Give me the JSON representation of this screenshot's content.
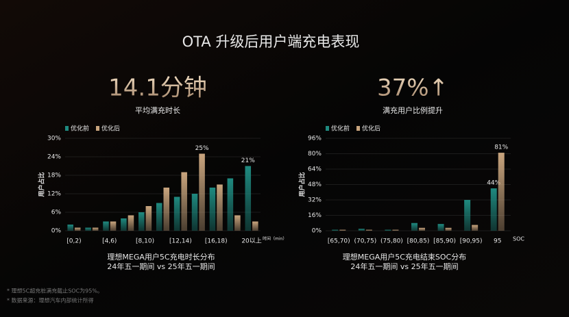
{
  "title": "OTA 升级后用户端充电表现",
  "stats": [
    {
      "value": "14.1分钟",
      "label": "平均满充时长"
    },
    {
      "value": "37%↑",
      "label": "满充用户比例提升"
    }
  ],
  "footnotes": [
    "* 理想5C超充桩满充截止SOC为95%。",
    "* 数据来源：理想汽车内部统计所得"
  ],
  "chart_data": [
    {
      "type": "bar",
      "title": "理想MEGA用户5C充电时长分布",
      "subtitle": "24年五一期间 vs 25年五一期间",
      "y_label": "用户占比",
      "x_label": "时间（min）",
      "categories": [
        "[0,2)",
        null,
        "[4,6)",
        null,
        "[8,10)",
        null,
        "[12,14)",
        null,
        "[16,18)",
        null,
        "20以上"
      ],
      "series": [
        {
          "name": "优化前",
          "color": "#1f8a80",
          "values": [
            2,
            1,
            3,
            4,
            6,
            9,
            11,
            12,
            14,
            17,
            21
          ],
          "value_labels": [
            null,
            null,
            null,
            null,
            null,
            null,
            null,
            null,
            null,
            null,
            "21%"
          ]
        },
        {
          "name": "优化后",
          "color": "#c9a57e",
          "values": [
            1,
            1,
            3,
            5,
            8,
            14,
            19,
            25,
            15,
            5,
            3
          ],
          "value_labels": [
            null,
            null,
            null,
            null,
            null,
            null,
            null,
            "25%",
            null,
            null,
            null
          ]
        }
      ],
      "ylim": [
        0,
        30
      ],
      "yticks": [
        {
          "value": 0,
          "label": "0%"
        },
        {
          "value": 6,
          "label": "6%"
        },
        {
          "value": 12,
          "label": "12%"
        },
        {
          "value": 18,
          "label": "18%"
        },
        {
          "value": 24,
          "label": "24%"
        },
        {
          "value": 30,
          "label": "30%"
        }
      ],
      "grid": true,
      "legend": "top-left"
    },
    {
      "type": "bar",
      "title": "理想MEGA用户5C充电结束SOC分布",
      "subtitle": "24年五一期间 vs 25年五一期间",
      "y_label": "用户占比",
      "x_label": "SOC",
      "categories": [
        "[65,70)",
        "(70,75)",
        "(75,80)",
        "[80,85)",
        "[85,90)",
        "[90,95)",
        "95"
      ],
      "series": [
        {
          "name": "优化前",
          "color": "#1f8a80",
          "values": [
            1,
            2,
            1,
            8,
            7,
            32,
            44
          ],
          "value_labels": [
            null,
            null,
            null,
            null,
            null,
            null,
            "44%"
          ]
        },
        {
          "name": "优化后",
          "color": "#c9a57e",
          "values": [
            1,
            1,
            1,
            3,
            3,
            6,
            81
          ],
          "value_labels": [
            null,
            null,
            null,
            null,
            null,
            null,
            "81%"
          ]
        }
      ],
      "ylim": [
        0,
        96
      ],
      "yticks": [
        {
          "value": 0,
          "label": "0%"
        },
        {
          "value": 16,
          "label": "16%"
        },
        {
          "value": 32,
          "label": "32%"
        },
        {
          "value": 48,
          "label": "48%"
        },
        {
          "value": 64,
          "label": "64%"
        },
        {
          "value": 80,
          "label": "80%"
        },
        {
          "value": 96,
          "label": "96%"
        }
      ],
      "grid": true,
      "legend": "top-left"
    }
  ]
}
